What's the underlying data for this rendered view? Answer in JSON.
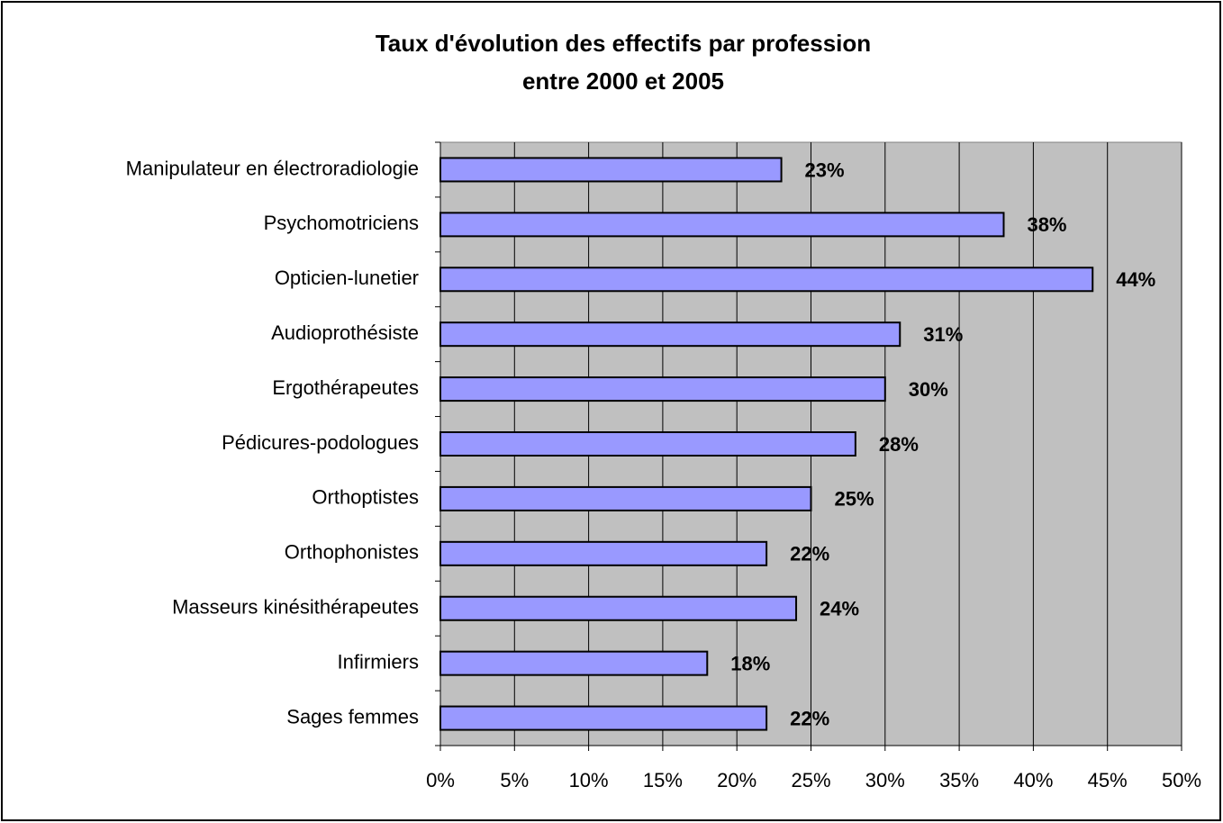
{
  "chart_data": {
    "type": "bar",
    "orientation": "horizontal",
    "title": [
      "Taux d'évolution des effectifs par profession",
      "entre 2000 et 2005"
    ],
    "categories": [
      "Manipulateur en électroradiologie",
      "Psychomotriciens",
      "Opticien-lunetier",
      "Audioprothésiste",
      "Ergothérapeutes",
      "Pédicures-podologues",
      "Orthoptistes",
      "Orthophonistes",
      "Masseurs kinésithérapeutes",
      "Infirmiers",
      "Sages femmes"
    ],
    "values": [
      23,
      38,
      44,
      31,
      30,
      28,
      25,
      22,
      24,
      18,
      22
    ],
    "value_labels": [
      "23%",
      "38%",
      "44%",
      "31%",
      "30%",
      "28%",
      "25%",
      "22%",
      "24%",
      "18%",
      "22%"
    ],
    "color": "#9999ff",
    "plot_background": "#c0c0c0",
    "xlim": [
      0,
      50
    ],
    "xticks": [
      {
        "value": 0,
        "label": "0%"
      },
      {
        "value": 5,
        "label": "5%"
      },
      {
        "value": 10,
        "label": "10%"
      },
      {
        "value": 15,
        "label": "15%"
      },
      {
        "value": 20,
        "label": "20%"
      },
      {
        "value": 25,
        "label": "25%"
      },
      {
        "value": 30,
        "label": "30%"
      },
      {
        "value": 35,
        "label": "35%"
      },
      {
        "value": 40,
        "label": "40%"
      },
      {
        "value": 45,
        "label": "45%"
      },
      {
        "value": 50,
        "label": "50%"
      }
    ],
    "grid": true
  }
}
